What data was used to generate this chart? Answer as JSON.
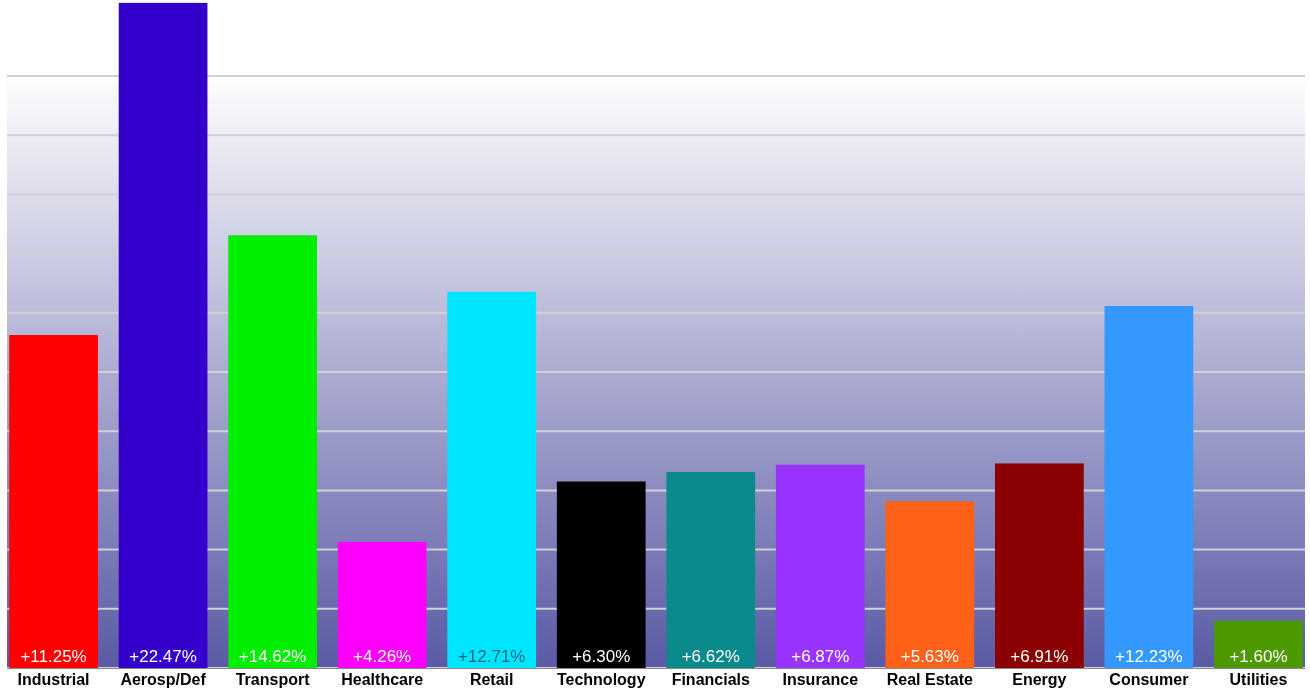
{
  "chart_data": {
    "type": "bar",
    "categories": [
      "Industrial",
      "Aerosp/Def",
      "Transport",
      "Healthcare",
      "Retail",
      "Technology",
      "Financials",
      "Insurance",
      "Real Estate",
      "Energy",
      "Consumer",
      "Utilities"
    ],
    "values": [
      11.25,
      22.47,
      14.62,
      4.26,
      12.71,
      6.3,
      6.62,
      6.87,
      5.63,
      6.91,
      12.23,
      1.6
    ],
    "value_labels": [
      "+11.25%",
      "+22.47%",
      "+14.62%",
      "+4.26%",
      "+12.71%",
      "+6.30%",
      "+6.62%",
      "+6.87%",
      "+5.63%",
      "+6.91%",
      "+12.23%",
      "+1.60%"
    ],
    "colors": [
      "#ff0000",
      "#3300cc",
      "#00ee00",
      "#ff00ff",
      "#00e5ff",
      "#000000",
      "#0a8a8a",
      "#9933ff",
      "#ff6118",
      "#8b0000",
      "#3399ff",
      "#4c9900"
    ],
    "ylim": [
      0,
      22.5
    ],
    "yticks": [
      {
        "value": 0,
        "label": null
      },
      {
        "value": 2,
        "label": null
      },
      {
        "value": 4,
        "label": null
      },
      {
        "value": 6,
        "label": null
      },
      {
        "value": 8,
        "label": null
      },
      {
        "value": 10,
        "label": null
      },
      {
        "value": 12,
        "label": null
      },
      {
        "value": 14,
        "label": null
      },
      {
        "value": 16,
        "label": null
      },
      {
        "value": 18,
        "label": null
      },
      {
        "value": 20,
        "label": null
      }
    ],
    "grid": "y",
    "tick_labels": "x"
  }
}
